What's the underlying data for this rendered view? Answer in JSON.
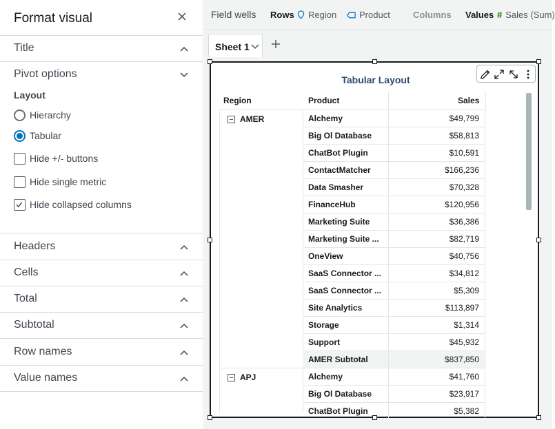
{
  "panel": {
    "title": "Format visual",
    "sections": {
      "title": "Title",
      "pivot_options": "Pivot options",
      "headers": "Headers",
      "cells": "Cells",
      "total": "Total",
      "subtotal": "Subtotal",
      "row_names": "Row names",
      "value_names": "Value names"
    },
    "layout_label": "Layout",
    "layout_options": {
      "hierarchy": "Hierarchy",
      "tabular": "Tabular",
      "selected": "Tabular"
    },
    "checkboxes": {
      "hide_buttons": {
        "label": "Hide +/- buttons",
        "checked": false
      },
      "hide_single_metric": {
        "label": "Hide single metric",
        "checked": false
      },
      "hide_collapsed_columns": {
        "label": "Hide collapsed columns",
        "checked": true
      }
    }
  },
  "field_wells": {
    "title": "Field wells",
    "rows_label": "Rows",
    "rows_fields": [
      "Region",
      "Product"
    ],
    "columns_label": "Columns",
    "values_label": "Values",
    "values_fields": [
      "Sales (Sum)"
    ]
  },
  "sheets": {
    "active": "Sheet 1",
    "add_icon": "plus-icon"
  },
  "visual": {
    "title": "Tabular Layout",
    "toolbar_icons": [
      "pencil-icon",
      "expand-icon",
      "resize-icon",
      "more-icon"
    ],
    "columns": [
      "Region",
      "Product",
      "Sales"
    ],
    "regions": [
      {
        "name": "AMER",
        "rows": [
          {
            "product": "Alchemy",
            "sales": "$49,799"
          },
          {
            "product": "Big Ol Database",
            "sales": "$58,813"
          },
          {
            "product": "ChatBot Plugin",
            "sales": "$10,591"
          },
          {
            "product": "ContactMatcher",
            "sales": "$166,236"
          },
          {
            "product": "Data Smasher",
            "sales": "$70,328"
          },
          {
            "product": "FinanceHub",
            "sales": "$120,956"
          },
          {
            "product": "Marketing Suite",
            "sales": "$36,386"
          },
          {
            "product": "Marketing Suite ...",
            "sales": "$82,719"
          },
          {
            "product": "OneView",
            "sales": "$40,756"
          },
          {
            "product": "SaaS Connector ...",
            "sales": "$34,812"
          },
          {
            "product": "SaaS Connector ...",
            "sales": "$5,309"
          },
          {
            "product": "Site Analytics",
            "sales": "$113,897"
          },
          {
            "product": "Storage",
            "sales": "$1,314"
          },
          {
            "product": "Support",
            "sales": "$45,932"
          }
        ],
        "subtotal": {
          "label": "AMER Subtotal",
          "sales": "$837,850"
        }
      },
      {
        "name": "APJ",
        "rows": [
          {
            "product": "Alchemy",
            "sales": "$41,760"
          },
          {
            "product": "Big Ol Database",
            "sales": "$23,917"
          },
          {
            "product": "ChatBot Plugin",
            "sales": "$5,382"
          }
        ]
      }
    ]
  }
}
